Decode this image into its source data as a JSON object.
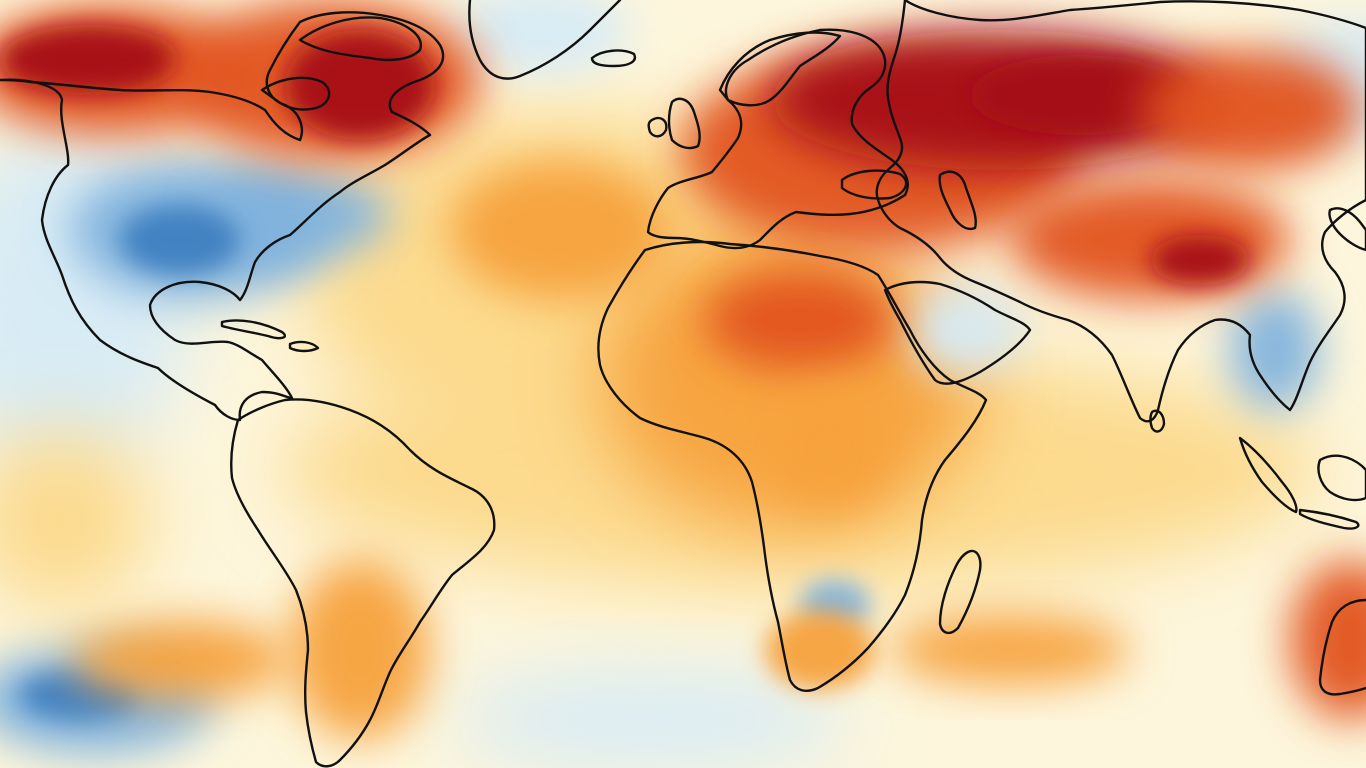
{
  "map": {
    "kind": "global-temperature-anomaly",
    "projection": "equirectangular",
    "extent": {
      "lon": [
        -135,
        160
      ],
      "lat": [
        -60,
        90
      ]
    },
    "legend_shown": false,
    "colors": {
      "background": "#fdf6dc",
      "coastline": "#111111",
      "deep_warm": "#a50f15",
      "warm": "#e2531d",
      "mild_warm": "#f7a13d",
      "slight_warm": "#fcd98a",
      "neutral": "#fdf6dc",
      "slight_cool": "#d6ebf7",
      "cool": "#7fb2dd",
      "deep_cool": "#3f7fc1"
    },
    "anomaly_regions": [
      {
        "name": "northern-canada",
        "level": "deep_warm"
      },
      {
        "name": "alaska",
        "level": "warm"
      },
      {
        "name": "russia-siberia",
        "level": "deep_warm"
      },
      {
        "name": "eastern-europe",
        "level": "warm"
      },
      {
        "name": "sahara",
        "level": "warm"
      },
      {
        "name": "central-asia",
        "level": "warm"
      },
      {
        "name": "southern-south-america",
        "level": "mild_warm"
      },
      {
        "name": "southern-ocean-west",
        "level": "mild_warm"
      },
      {
        "name": "south-indian-ocean",
        "level": "mild_warm"
      },
      {
        "name": "australia",
        "level": "warm"
      },
      {
        "name": "north-atlantic",
        "level": "mild_warm"
      },
      {
        "name": "central-united-states",
        "level": "cool"
      },
      {
        "name": "northeast-pacific",
        "level": "slight_cool"
      },
      {
        "name": "arabian-peninsula",
        "level": "slight_cool"
      },
      {
        "name": "southeast-asia",
        "level": "cool"
      },
      {
        "name": "southern-africa",
        "level": "cool"
      },
      {
        "name": "south-pacific",
        "level": "cool"
      },
      {
        "name": "greenland",
        "level": "slight_cool"
      }
    ]
  }
}
